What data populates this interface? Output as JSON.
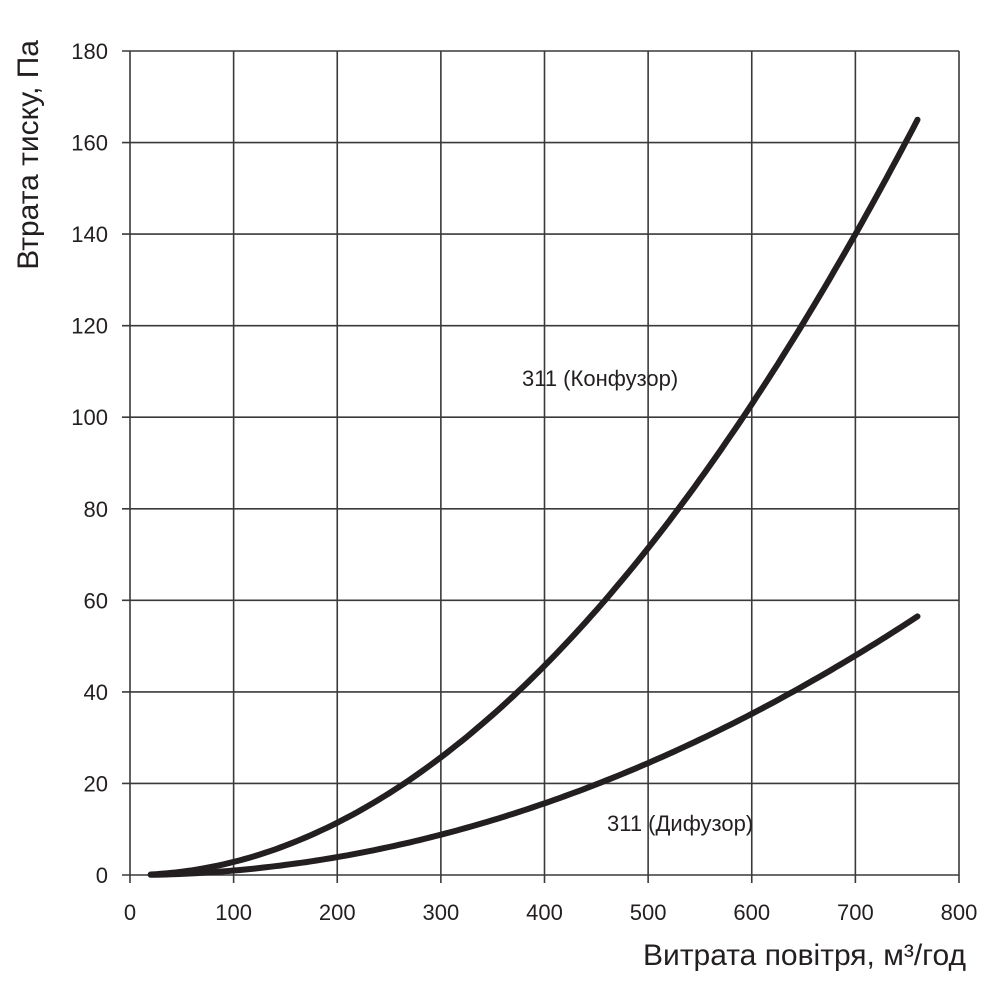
{
  "chart_data": {
    "type": "line",
    "title": "",
    "xlabel": "Витрата повітря, м³/год",
    "ylabel": "Втрата тиску, Па",
    "xlim": [
      0,
      800
    ],
    "ylim": [
      0,
      180
    ],
    "xticks": [
      "0",
      "100",
      "200",
      "300",
      "400",
      "500",
      "600",
      "700",
      "800"
    ],
    "yticks": [
      "0",
      "20",
      "40",
      "60",
      "80",
      "100",
      "120",
      "140",
      "160",
      "180"
    ],
    "grid": true,
    "series": [
      {
        "name": "311 (Конфузор)",
        "x": [
          20,
          100,
          200,
          300,
          400,
          500,
          600,
          700,
          760
        ],
        "y": [
          0.1,
          2.9,
          11.4,
          25.7,
          45.7,
          71.4,
          102.9,
          140,
          165
        ]
      },
      {
        "name": "311 (Дифузор)",
        "x": [
          20,
          100,
          200,
          300,
          400,
          500,
          600,
          700,
          760
        ],
        "y": [
          0.04,
          1.0,
          3.9,
          8.8,
          15.6,
          24.4,
          35.2,
          47.9,
          56.5
        ]
      }
    ],
    "colors": {
      "line": "#231f20",
      "grid": "#3a3a3a"
    }
  }
}
